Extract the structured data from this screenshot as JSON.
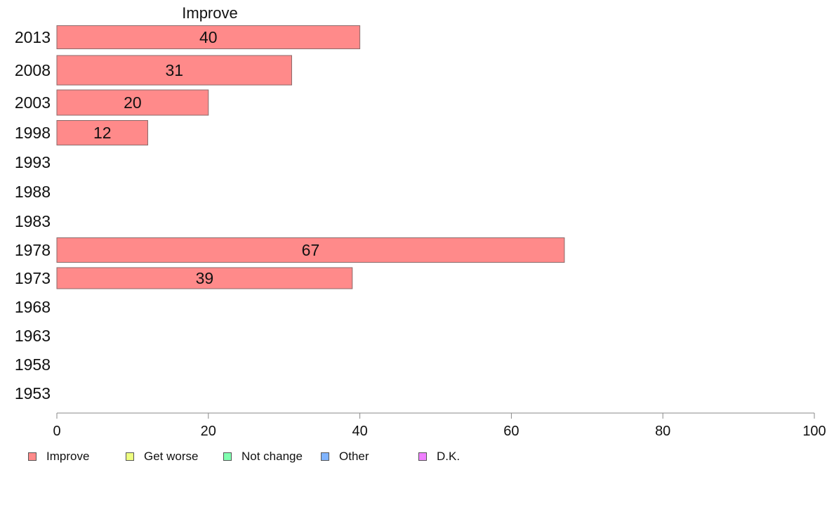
{
  "chart_data": {
    "type": "bar",
    "orientation": "horizontal",
    "title": "Improve",
    "categories": [
      "2013",
      "2008",
      "2003",
      "1998",
      "1993",
      "1988",
      "1983",
      "1978",
      "1973",
      "1968",
      "1963",
      "1958",
      "1953"
    ],
    "series": [
      {
        "name": "Improve",
        "values": [
          40,
          31,
          20,
          12,
          null,
          null,
          null,
          67,
          39,
          null,
          null,
          null,
          null
        ]
      }
    ],
    "data_labels": [
      "40",
      "31",
      "20",
      "12",
      "",
      "",
      "",
      "67",
      "39",
      "",
      "",
      "",
      ""
    ],
    "xlim": [
      0,
      100
    ],
    "xticks": [
      "0",
      "20",
      "40",
      "60",
      "80",
      "100"
    ],
    "xlabel": "",
    "ylabel": "",
    "grid": false,
    "legend_placement": "bottom",
    "legend": [
      {
        "label": "Improve",
        "color": "#ff8a8a"
      },
      {
        "label": "Get worse",
        "color": "#eeff80"
      },
      {
        "label": "Not change",
        "color": "#80ffb0"
      },
      {
        "label": "Other",
        "color": "#80b4ff"
      },
      {
        "label": "D.K.",
        "color": "#f080ff"
      }
    ],
    "bar_color": "#ff8a8a",
    "bar_border_color": "#8a6a6a",
    "axis_color": "#888888"
  }
}
